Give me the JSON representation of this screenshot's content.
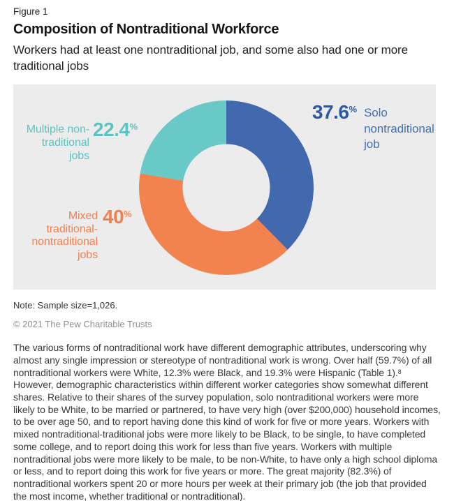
{
  "header": {
    "figure_label": "Figure 1",
    "title": "Composition of Nontraditional Workforce",
    "subtitle": "Workers had at least one nontraditional job, and some also had one or more traditional jobs"
  },
  "chart_data": {
    "type": "pie",
    "variant": "donut",
    "title": "Composition of Nontraditional Workforce",
    "start_angle_deg": 0,
    "direction": "clockwise",
    "panel_background": "#ececec",
    "inner_radius_ratio": 0.5,
    "legend_position": "callouts-beside-slices",
    "segments": [
      {
        "label": "Solo nontraditional job",
        "value": 37.6,
        "value_label": "37.6",
        "unit": "%",
        "color": "#4269ae",
        "number_color": "#2a59a6",
        "label_color": "#4171b5",
        "label_side": "right"
      },
      {
        "label": "Mixed traditional-nontraditional jobs",
        "value": 40,
        "value_label": "40",
        "unit": "%",
        "color": "#f2824e",
        "number_color": "#f0814f",
        "label_color": "#f0814f",
        "label_side": "left"
      },
      {
        "label": "Multiple non-traditional jobs",
        "value": 22.4,
        "value_label": "22.4",
        "unit": "%",
        "color": "#69c9c6",
        "number_color": "#5ec4c2",
        "label_color": "#5ec4c2",
        "label_side": "left"
      }
    ]
  },
  "footer": {
    "note": "Note: Sample size=1,026.",
    "copyright": "© 2021 The Pew Charitable Trusts"
  },
  "body": {
    "part1": "The various forms of nontraditional work have different demographic attributes, underscoring why almost any single impression or stereotype of nontraditional work is wrong. Over half (59.7%) of all nontraditional workers were White, 12.3% were Black, and 19.3% were Hispanic (Table 1).",
    "footnote_marker": "8",
    "part2": " However, demographic characteristics within different worker categories show somewhat different shares. Relative to their shares of the survey population, solo nontraditional workers were more likely to be White, to be married or partnered, to have very high (over $200,000) household incomes, to be over age 50, and to report having done this kind of work for five or more years. Workers with mixed nontraditional-traditional jobs were more likely to be Black, to be single, to have completed some college, and to report doing this work for less than five years. Workers with multiple nontraditional jobs were more likely to be male, to be non-White, to have only a high school diploma or less, and to report doing this work for five years or more. The great majority (82.3%) of nontraditional workers spent 20 or more hours per week at their primary job (the job that provided the most income, whether traditional or nontraditional)."
  }
}
